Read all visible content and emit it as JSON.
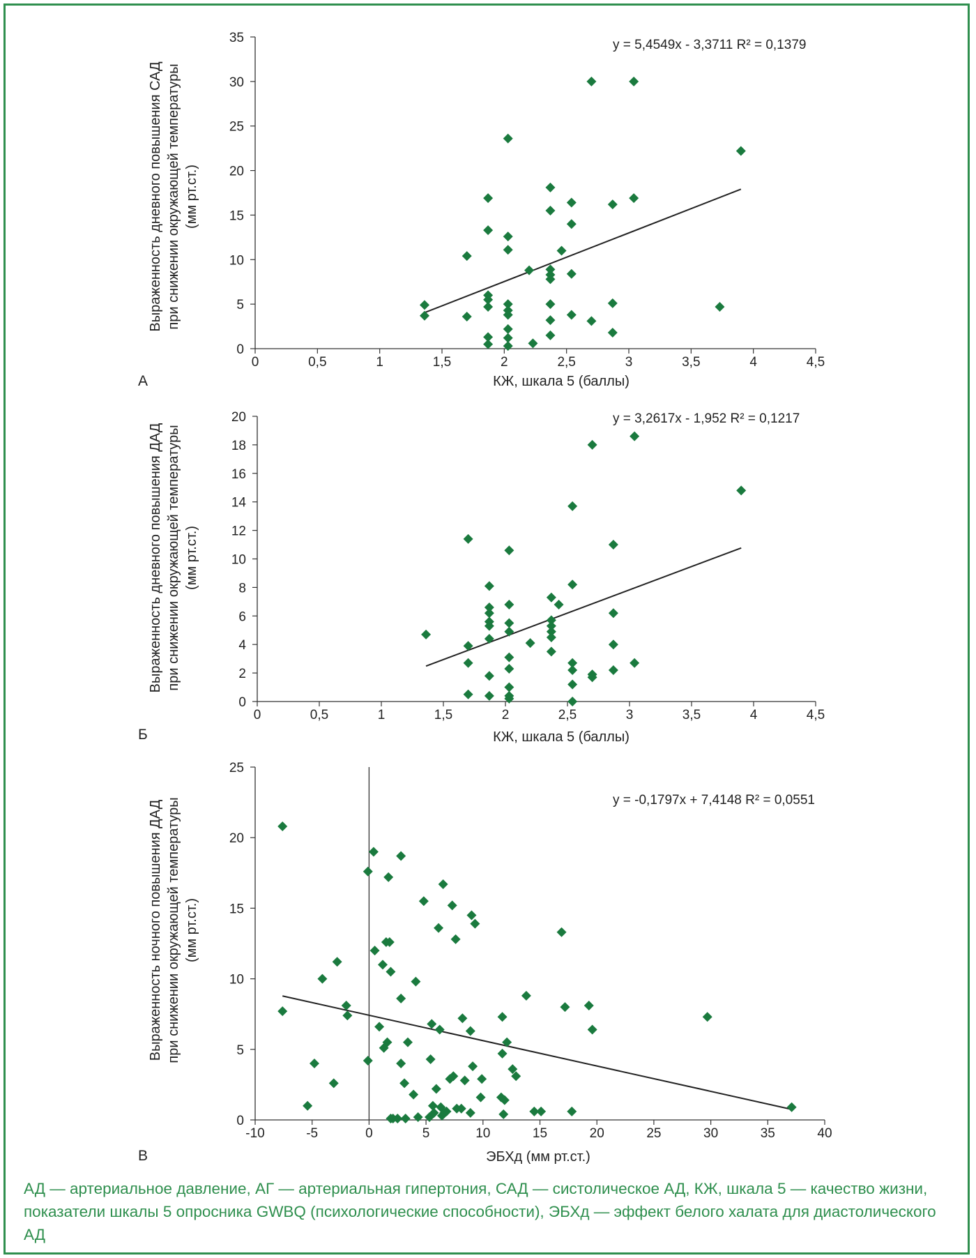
{
  "caption": "АД — артериальное давление, АГ — артериальная гипертония, САД — систолическое АД, КЖ, шкала 5 — качество жизни, показатели шкалы 5 опросника GWBQ (психологические способности), ЭБХд — эффект белого халата для диастолического АД",
  "colors": {
    "marker": "#1a7a3e",
    "frame": "#2f8f4e",
    "axis": "#333333",
    "trend": "#222222"
  },
  "chart_data": [
    {
      "type": "scatter",
      "panel_label": "А",
      "equation": "y = 5,4549x - 3,3711 R² = 0,1379",
      "xlabel": "КЖ, шкала 5 (баллы)",
      "ylabel_lines": [
        "Выраженность дневного повышения САД",
        "при снижении окружающей температуры",
        "(мм рт.ст.)"
      ],
      "xlim": [
        0,
        4.5
      ],
      "ylim": [
        0,
        35
      ],
      "xticks": [
        "0",
        "0,5",
        "1",
        "1,5",
        "2",
        "2,5",
        "3",
        "3,5",
        "4",
        "4,5"
      ],
      "xtick_values": [
        0,
        0.5,
        1,
        1.5,
        2,
        2.5,
        3,
        3.5,
        4,
        4.5
      ],
      "yticks": [
        "0",
        "5",
        "10",
        "15",
        "20",
        "25",
        "30",
        "35"
      ],
      "ytick_values": [
        0,
        5,
        10,
        15,
        20,
        25,
        30,
        35
      ],
      "trendline": {
        "slope": 5.4549,
        "intercept": -3.3711,
        "x_range": [
          1.36,
          3.9
        ]
      },
      "zero_axis_x": false,
      "points": [
        [
          1.36,
          4.9
        ],
        [
          1.36,
          3.7
        ],
        [
          1.7,
          10.4
        ],
        [
          1.7,
          3.6
        ],
        [
          1.87,
          16.9
        ],
        [
          1.87,
          13.3
        ],
        [
          1.87,
          6.0
        ],
        [
          1.87,
          5.5
        ],
        [
          1.87,
          4.7
        ],
        [
          1.87,
          1.3
        ],
        [
          1.87,
          0.5
        ],
        [
          2.03,
          23.6
        ],
        [
          2.03,
          12.6
        ],
        [
          2.03,
          11.1
        ],
        [
          2.03,
          5.0
        ],
        [
          2.03,
          4.3
        ],
        [
          2.03,
          3.8
        ],
        [
          2.03,
          2.2
        ],
        [
          2.03,
          1.2
        ],
        [
          2.03,
          0.3
        ],
        [
          2.2,
          8.8
        ],
        [
          2.23,
          0.6
        ],
        [
          2.37,
          18.1
        ],
        [
          2.37,
          15.5
        ],
        [
          2.37,
          8.9
        ],
        [
          2.37,
          8.3
        ],
        [
          2.37,
          7.8
        ],
        [
          2.37,
          5.0
        ],
        [
          2.37,
          3.2
        ],
        [
          2.37,
          1.5
        ],
        [
          2.46,
          11.0
        ],
        [
          2.54,
          16.4
        ],
        [
          2.54,
          14.0
        ],
        [
          2.54,
          8.4
        ],
        [
          2.54,
          3.8
        ],
        [
          2.7,
          30.0
        ],
        [
          2.7,
          3.1
        ],
        [
          2.87,
          16.2
        ],
        [
          2.87,
          5.1
        ],
        [
          2.87,
          1.8
        ],
        [
          3.04,
          30.0
        ],
        [
          3.04,
          16.9
        ],
        [
          3.73,
          4.7
        ],
        [
          3.9,
          22.2
        ]
      ]
    },
    {
      "type": "scatter",
      "panel_label": "Б",
      "equation": "y = 3,2617x - 1,952 R² = 0,1217",
      "xlabel": "КЖ, шкала 5 (баллы)",
      "ylabel_lines": [
        "Выраженность дневного повышения ДАД",
        "при снижении окружающей температуры",
        "(мм рт.ст.)"
      ],
      "xlim": [
        0,
        4.5
      ],
      "ylim": [
        0,
        20
      ],
      "xticks": [
        "0",
        "0,5",
        "1",
        "1,5",
        "2",
        "2,5",
        "3",
        "3,5",
        "4",
        "4,5"
      ],
      "xtick_values": [
        0,
        0.5,
        1,
        1.5,
        2,
        2.5,
        3,
        3.5,
        4,
        4.5
      ],
      "yticks": [
        "0",
        "2",
        "4",
        "6",
        "8",
        "10",
        "12",
        "14",
        "16",
        "18",
        "20"
      ],
      "ytick_values": [
        0,
        2,
        4,
        6,
        8,
        10,
        12,
        14,
        16,
        18,
        20
      ],
      "trendline": {
        "slope": 3.2617,
        "intercept": -1.952,
        "x_range": [
          1.36,
          3.9
        ]
      },
      "zero_axis_x": false,
      "points": [
        [
          1.36,
          4.7
        ],
        [
          1.7,
          11.4
        ],
        [
          1.7,
          3.9
        ],
        [
          1.7,
          2.7
        ],
        [
          1.7,
          0.5
        ],
        [
          1.87,
          8.1
        ],
        [
          1.87,
          6.6
        ],
        [
          1.87,
          6.2
        ],
        [
          1.87,
          5.6
        ],
        [
          1.87,
          5.3
        ],
        [
          1.87,
          4.4
        ],
        [
          1.87,
          1.8
        ],
        [
          1.87,
          0.4
        ],
        [
          2.03,
          10.6
        ],
        [
          2.03,
          6.8
        ],
        [
          2.03,
          5.5
        ],
        [
          2.03,
          4.9
        ],
        [
          2.03,
          3.1
        ],
        [
          2.03,
          2.3
        ],
        [
          2.03,
          1.0
        ],
        [
          2.03,
          0.4
        ],
        [
          2.03,
          0.2
        ],
        [
          2.2,
          4.1
        ],
        [
          2.37,
          7.3
        ],
        [
          2.37,
          5.7
        ],
        [
          2.37,
          5.3
        ],
        [
          2.37,
          4.9
        ],
        [
          2.37,
          4.5
        ],
        [
          2.37,
          3.5
        ],
        [
          2.43,
          6.8
        ],
        [
          2.54,
          13.7
        ],
        [
          2.54,
          8.2
        ],
        [
          2.54,
          2.7
        ],
        [
          2.54,
          2.2
        ],
        [
          2.54,
          1.2
        ],
        [
          2.54,
          0.0
        ],
        [
          2.7,
          18.0
        ],
        [
          2.7,
          1.9
        ],
        [
          2.7,
          1.7
        ],
        [
          2.87,
          11.0
        ],
        [
          2.87,
          6.2
        ],
        [
          2.87,
          4.0
        ],
        [
          2.87,
          2.2
        ],
        [
          3.04,
          18.6
        ],
        [
          3.04,
          2.7
        ],
        [
          3.9,
          14.8
        ]
      ]
    },
    {
      "type": "scatter",
      "panel_label": "В",
      "equation": "y = -0,1797x + 7,4148 R² = 0,0551",
      "xlabel": "ЭБХд (мм рт.ст.)",
      "ylabel_lines": [
        "Выраженность ночного повышения ДАД",
        "при снижении окружающей температуры",
        "(мм рт.ст.)"
      ],
      "xlim": [
        -10,
        40
      ],
      "ylim": [
        0,
        25
      ],
      "xticks": [
        "-10",
        "-5",
        "0",
        "5",
        "10",
        "15",
        "20",
        "25",
        "30",
        "35",
        "40"
      ],
      "xtick_values": [
        -10,
        -5,
        0,
        5,
        10,
        15,
        20,
        25,
        30,
        35,
        40
      ],
      "yticks": [
        "0",
        "5",
        "10",
        "15",
        "20",
        "25"
      ],
      "ytick_values": [
        0,
        5,
        10,
        15,
        20,
        25
      ],
      "trendline": {
        "slope": -0.1797,
        "intercept": 7.4148,
        "x_range": [
          -7.6,
          37.1
        ]
      },
      "zero_axis_x": true,
      "points": [
        [
          -7.6,
          20.8
        ],
        [
          -7.6,
          7.7
        ],
        [
          -5.4,
          1.0
        ],
        [
          -4.8,
          4.0
        ],
        [
          -4.1,
          10.0
        ],
        [
          -3.1,
          2.6
        ],
        [
          -2.8,
          11.2
        ],
        [
          -2.0,
          8.1
        ],
        [
          -1.9,
          7.4
        ],
        [
          -0.1,
          17.6
        ],
        [
          -0.1,
          4.2
        ],
        [
          0.4,
          19.0
        ],
        [
          0.5,
          12.0
        ],
        [
          0.9,
          6.6
        ],
        [
          1.2,
          11.0
        ],
        [
          1.3,
          5.1
        ],
        [
          1.5,
          12.6
        ],
        [
          1.6,
          5.5
        ],
        [
          1.7,
          17.2
        ],
        [
          1.8,
          12.6
        ],
        [
          1.9,
          10.5
        ],
        [
          1.9,
          0.1
        ],
        [
          2.1,
          0.1
        ],
        [
          2.5,
          0.1
        ],
        [
          2.8,
          18.7
        ],
        [
          2.8,
          8.6
        ],
        [
          2.8,
          4.0
        ],
        [
          3.1,
          2.6
        ],
        [
          3.2,
          0.1
        ],
        [
          3.4,
          5.5
        ],
        [
          3.9,
          1.8
        ],
        [
          4.1,
          9.8
        ],
        [
          4.3,
          0.2
        ],
        [
          4.8,
          15.5
        ],
        [
          5.3,
          0.2
        ],
        [
          5.4,
          4.3
        ],
        [
          5.5,
          6.8
        ],
        [
          5.6,
          1.0
        ],
        [
          5.7,
          0.5
        ],
        [
          5.9,
          2.2
        ],
        [
          6.1,
          13.6
        ],
        [
          6.2,
          6.4
        ],
        [
          6.3,
          0.9
        ],
        [
          6.4,
          0.3
        ],
        [
          6.5,
          16.7
        ],
        [
          6.6,
          0.5
        ],
        [
          6.8,
          0.6
        ],
        [
          7.1,
          2.9
        ],
        [
          7.3,
          15.2
        ],
        [
          7.4,
          3.1
        ],
        [
          7.6,
          12.8
        ],
        [
          7.7,
          0.8
        ],
        [
          8.1,
          0.8
        ],
        [
          8.2,
          7.2
        ],
        [
          8.4,
          2.8
        ],
        [
          8.9,
          6.3
        ],
        [
          8.9,
          0.5
        ],
        [
          9.0,
          14.5
        ],
        [
          9.1,
          3.8
        ],
        [
          9.3,
          13.9
        ],
        [
          9.8,
          1.6
        ],
        [
          9.9,
          2.9
        ],
        [
          11.6,
          1.6
        ],
        [
          11.7,
          7.3
        ],
        [
          11.7,
          4.7
        ],
        [
          11.8,
          0.4
        ],
        [
          11.9,
          1.4
        ],
        [
          12.1,
          5.5
        ],
        [
          12.6,
          3.6
        ],
        [
          12.9,
          3.1
        ],
        [
          13.8,
          8.8
        ],
        [
          14.5,
          0.6
        ],
        [
          15.1,
          0.6
        ],
        [
          16.9,
          13.3
        ],
        [
          17.2,
          8.0
        ],
        [
          17.8,
          0.6
        ],
        [
          19.3,
          8.1
        ],
        [
          19.6,
          6.4
        ],
        [
          29.7,
          7.3
        ],
        [
          37.1,
          0.9
        ]
      ]
    }
  ]
}
